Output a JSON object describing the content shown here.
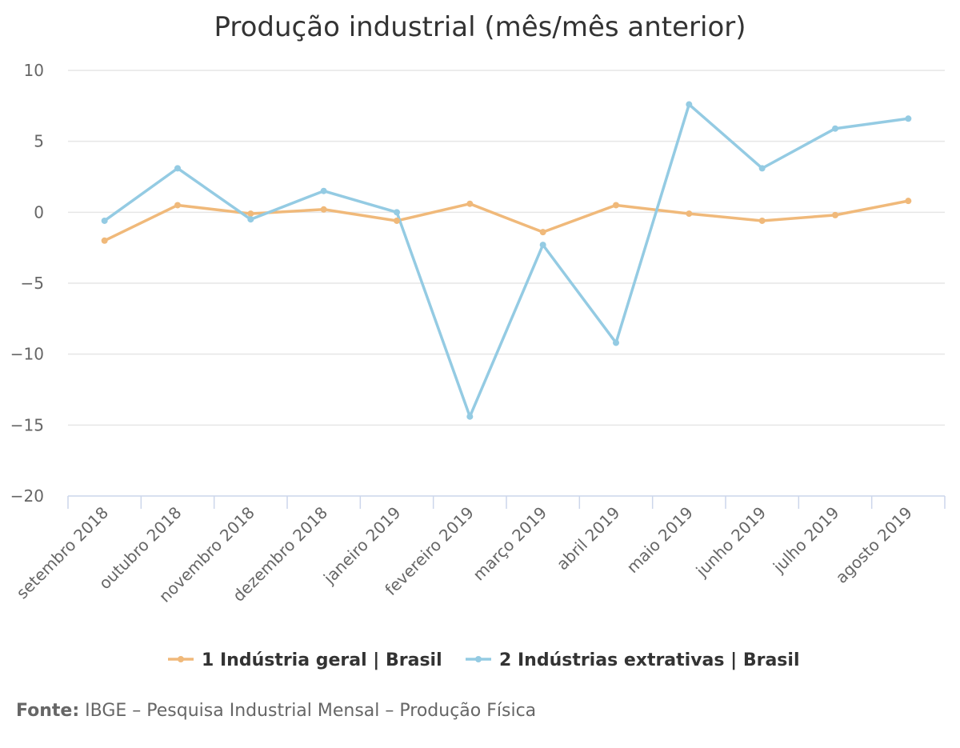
{
  "chart_data": {
    "type": "line",
    "title": "Produção industrial (mês/mês anterior)",
    "categories": [
      "setembro 2018",
      "outubro 2018",
      "novembro 2018",
      "dezembro 2018",
      "janeiro 2019",
      "fevereiro 2019",
      "março 2019",
      "abril 2019",
      "maio 2019",
      "junho 2019",
      "julho 2019",
      "agosto 2019"
    ],
    "series": [
      {
        "name": "1 Indústria geral | Brasil",
        "color": "#f0b97a",
        "values": [
          -2.0,
          0.5,
          -0.1,
          0.2,
          -0.6,
          0.6,
          -1.4,
          0.5,
          -0.1,
          -0.6,
          -0.2,
          0.8
        ]
      },
      {
        "name": "2 Indústrias extrativas | Brasil",
        "color": "#94cbe3",
        "values": [
          -0.6,
          3.1,
          -0.5,
          1.5,
          0.0,
          -14.4,
          -2.3,
          -9.2,
          7.6,
          3.1,
          5.9,
          6.6
        ]
      }
    ],
    "yticks": [
      "10",
      "5",
      "0",
      "−5",
      "−10",
      "−15",
      "−20"
    ],
    "ytick_values": [
      10,
      5,
      0,
      -5,
      -10,
      -15,
      -20
    ],
    "ylim": [
      -20,
      10
    ],
    "xlabel": "",
    "ylabel": "",
    "grid": true,
    "legend_position": "bottom"
  },
  "source": {
    "label": "Fonte:",
    "text": " IBGE – Pesquisa Industrial Mensal – Produção Física"
  }
}
